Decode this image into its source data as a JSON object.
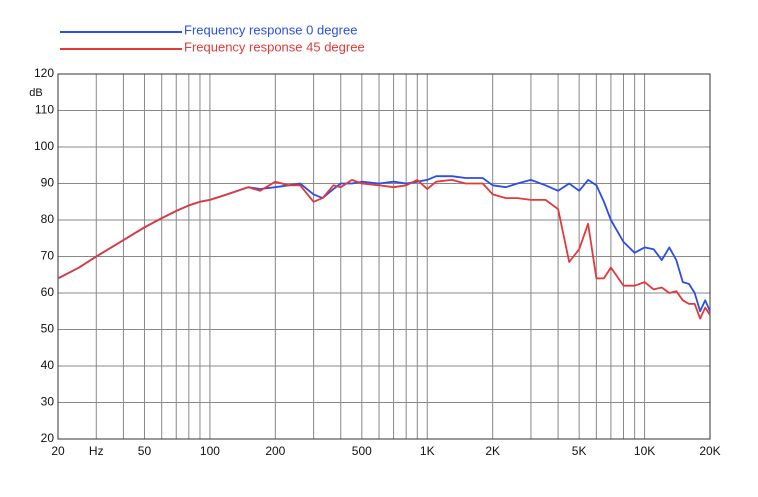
{
  "chart_data": {
    "type": "line",
    "legend": [
      "Frequency response 0 degree",
      "Frequency response 45 degree"
    ],
    "legend_position": "top-left",
    "ylabel": "dB",
    "xscale": "log",
    "grid": true,
    "xlim": [
      20,
      20000
    ],
    "ylim": [
      20,
      120
    ],
    "xticks": [
      20,
      {
        "value": 30,
        "label": "Hz"
      },
      50,
      100,
      200,
      500,
      {
        "value": 1000,
        "label": "1K"
      },
      {
        "value": 2000,
        "label": "2K"
      },
      {
        "value": 5000,
        "label": "5K"
      },
      {
        "value": 10000,
        "label": "10K"
      },
      {
        "value": 20000,
        "label": "20K"
      }
    ],
    "xminorticks": [
      40,
      60,
      70,
      80,
      90,
      300,
      400,
      600,
      700,
      800,
      900,
      3000,
      4000,
      6000,
      7000,
      8000,
      9000
    ],
    "yticks": [
      20,
      30,
      40,
      50,
      60,
      70,
      80,
      90,
      100,
      110,
      120
    ],
    "x": [
      20,
      25,
      30,
      40,
      50,
      60,
      70,
      80,
      90,
      100,
      120,
      150,
      170,
      200,
      230,
      260,
      300,
      330,
      370,
      400,
      450,
      500,
      600,
      700,
      800,
      900,
      1000,
      1100,
      1300,
      1500,
      1800,
      2000,
      2300,
      2600,
      3000,
      3500,
      4000,
      4500,
      5000,
      5500,
      6000,
      6500,
      7000,
      8000,
      9000,
      10000,
      11000,
      12000,
      13000,
      14000,
      15000,
      16000,
      17000,
      18000,
      19000,
      20000
    ],
    "series": [
      {
        "name": "Frequency response 0 degree",
        "color": "#2a4ee6",
        "values": [
          64,
          67,
          70,
          74.5,
          78,
          80.5,
          82.5,
          84,
          85,
          85.5,
          87,
          89,
          88.5,
          89,
          89.5,
          90,
          87,
          86,
          88.5,
          90,
          90,
          90.5,
          90,
          90.5,
          90,
          90.5,
          91,
          92,
          92,
          91.5,
          91.5,
          89.5,
          89,
          90,
          91,
          89.5,
          88,
          90,
          88,
          91,
          89.5,
          85,
          80,
          74,
          71,
          72.5,
          72,
          69,
          72.5,
          69,
          63,
          62.5,
          60,
          55,
          58,
          55
        ]
      },
      {
        "name": "Frequency response 45 degree",
        "color": "#e2393b",
        "values": [
          64,
          67,
          70,
          74.5,
          78,
          80.5,
          82.5,
          84,
          85,
          85.5,
          87,
          89,
          88,
          90.5,
          89.5,
          89.5,
          85,
          86,
          89.5,
          89,
          91,
          90,
          89.5,
          89,
          89.5,
          91,
          88.5,
          90.5,
          91,
          90,
          90,
          87,
          86,
          86,
          85.5,
          85.5,
          83,
          68.5,
          72,
          79,
          64,
          64,
          67,
          62,
          62,
          63,
          61,
          61.5,
          60,
          60.5,
          58,
          57,
          57,
          53,
          56,
          54
        ]
      }
    ]
  }
}
